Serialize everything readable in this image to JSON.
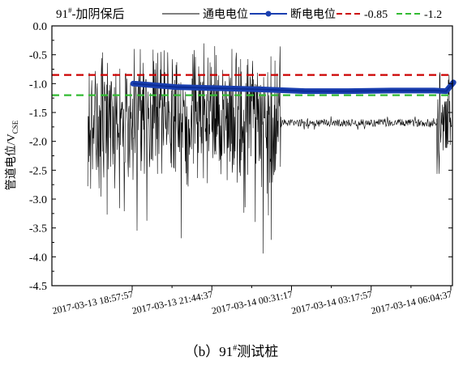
{
  "chart_data": {
    "type": "line",
    "title": "91#-加阴保后",
    "title_parts": {
      "number": "91",
      "superscript": "#",
      "suffix": "-加阴保后"
    },
    "ylabel": "管道电位/V",
    "ylabel_subscript": "CSE",
    "ylim": [
      -4.5,
      0.0
    ],
    "yticks": [
      "0.0",
      "-0.5",
      "-1.0",
      "-1.5",
      "-2.0",
      "-2.5",
      "-3.0",
      "-3.5",
      "-4.0",
      "-4.5"
    ],
    "xticks": [
      "2017-03-13 18:57:57",
      "2017-03-13 21:44:37",
      "2017-03-14 00:31:17",
      "2017-03-14 03:17:57",
      "2017-03-14 06:04:37"
    ],
    "grid": false,
    "legend_position": "top",
    "series": [
      {
        "name": "通电电位",
        "color": "#000000",
        "style": "solid",
        "segments": [
          {
            "x_start": "2017-03-13 17:25",
            "x_end": "2017-03-14 00:10",
            "center": -1.7,
            "typical_range": [
              -2.5,
              -0.8
            ],
            "min": -4.3,
            "max": -0.5
          },
          {
            "x_start": "2017-03-14 00:10",
            "x_end": "2017-03-14 05:35",
            "center": -1.68,
            "typical_range": [
              -1.8,
              -1.55
            ]
          },
          {
            "x_start": "2017-03-14 05:35",
            "x_end": "2017-03-14 06:15",
            "center": -1.7,
            "typical_range": [
              -2.4,
              -1.0
            ],
            "min": -3.4,
            "max": -1.0
          }
        ]
      },
      {
        "name": "断电电位",
        "color": "#1a3fb0",
        "style": "solid-dots",
        "x": [
          "2017-03-13 19:00",
          "2017-03-13 20:30",
          "2017-03-13 22:00",
          "2017-03-13 23:30",
          "2017-03-14 01:00",
          "2017-03-14 02:30",
          "2017-03-14 04:00",
          "2017-03-14 05:30",
          "2017-03-14 05:55",
          "2017-03-14 06:10"
        ],
        "values": [
          -1.0,
          -1.06,
          -1.08,
          -1.1,
          -1.13,
          -1.13,
          -1.12,
          -1.12,
          -1.13,
          -0.98
        ]
      },
      {
        "name": "-0.85",
        "color": "#cc0000",
        "style": "dashed",
        "value": -0.85
      },
      {
        "name": "-1.2",
        "color": "#33bb33",
        "style": "dashed",
        "value": -1.2
      }
    ]
  },
  "caption": {
    "prefix": "（b）91",
    "superscript": "#",
    "suffix": "测试桩"
  }
}
